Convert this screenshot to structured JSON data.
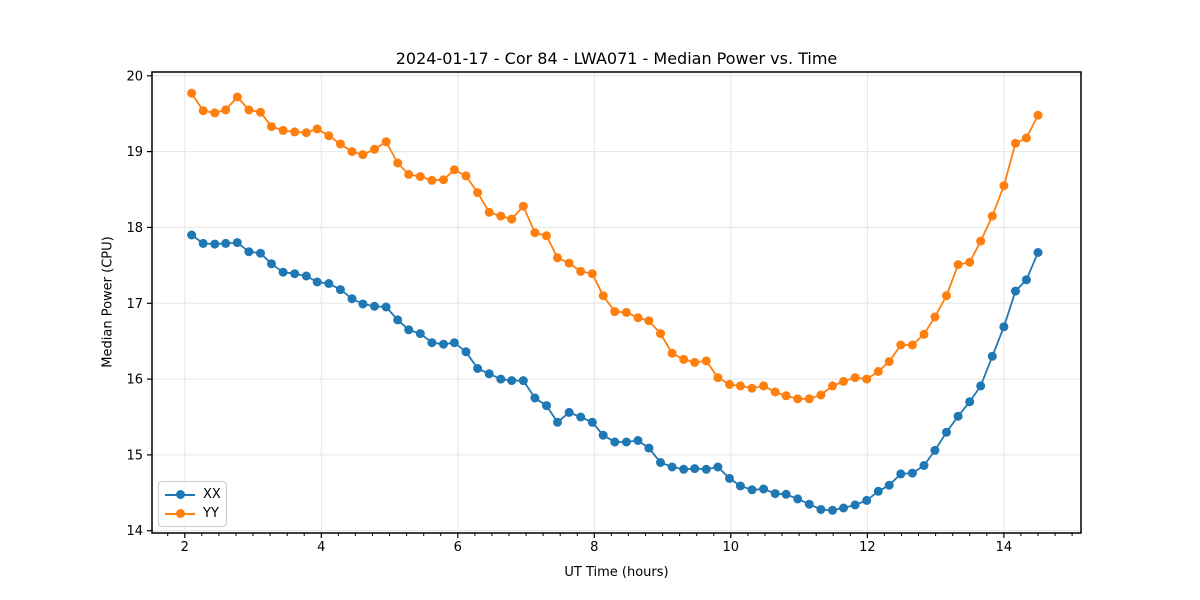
{
  "chart_data": {
    "type": "line",
    "title": "2024-01-17 - Cor 84 - LWA071 - Median Power vs. Time",
    "xlabel": "UT Time (hours)",
    "ylabel": "Median Power (CPU)",
    "xlim": [
      1.52,
      15.13
    ],
    "ylim": [
      13.97,
      20.05
    ],
    "xticks": [
      2,
      4,
      6,
      8,
      10,
      12,
      14
    ],
    "yticks": [
      14,
      15,
      16,
      17,
      18,
      19,
      20
    ],
    "minor_xtick_step": 0.25,
    "grid": true,
    "grid_color": "#e5e5e5",
    "legend_position": "lower left",
    "x": [
      2.1,
      2.27,
      2.44,
      2.6,
      2.77,
      2.94,
      3.11,
      3.27,
      3.44,
      3.61,
      3.78,
      3.94,
      4.11,
      4.28,
      4.45,
      4.61,
      4.78,
      4.95,
      5.12,
      5.28,
      5.45,
      5.62,
      5.79,
      5.95,
      6.12,
      6.29,
      6.46,
      6.63,
      6.79,
      6.96,
      7.13,
      7.3,
      7.46,
      7.63,
      7.8,
      7.97,
      8.13,
      8.3,
      8.47,
      8.64,
      8.8,
      8.97,
      9.14,
      9.31,
      9.47,
      9.64,
      9.81,
      9.98,
      10.14,
      10.31,
      10.48,
      10.65,
      10.81,
      10.98,
      11.15,
      11.32,
      11.49,
      11.65,
      11.82,
      11.99,
      12.16,
      12.32,
      12.49,
      12.66,
      12.83,
      12.99,
      13.16,
      13.33,
      13.5,
      13.66,
      13.83,
      14.0,
      14.17,
      14.33,
      14.5
    ],
    "series": [
      {
        "name": "XX",
        "color": "#1f77b4",
        "values": [
          17.9,
          17.79,
          17.78,
          17.79,
          17.8,
          17.68,
          17.66,
          17.52,
          17.41,
          17.39,
          17.36,
          17.28,
          17.26,
          17.18,
          17.06,
          16.99,
          16.96,
          16.95,
          16.78,
          16.65,
          16.6,
          16.48,
          16.46,
          16.48,
          16.36,
          16.14,
          16.07,
          16.0,
          15.98,
          15.98,
          15.75,
          15.65,
          15.43,
          15.56,
          15.5,
          15.43,
          15.26,
          15.17,
          15.17,
          15.19,
          15.09,
          14.9,
          14.84,
          14.81,
          14.82,
          14.81,
          14.84,
          14.69,
          14.59,
          14.54,
          14.55,
          14.49,
          14.48,
          14.42,
          14.35,
          14.28,
          14.27,
          14.3,
          14.34,
          14.4,
          14.52,
          14.6,
          14.75,
          14.76,
          14.86,
          15.06,
          15.3,
          15.51,
          15.7,
          15.91,
          16.3,
          16.69,
          17.16,
          17.31,
          17.67
        ]
      },
      {
        "name": "YY",
        "color": "#ff7f0e",
        "values": [
          19.77,
          19.54,
          19.51,
          19.55,
          19.72,
          19.55,
          19.52,
          19.33,
          19.28,
          19.26,
          19.25,
          19.3,
          19.21,
          19.1,
          19.0,
          18.96,
          19.03,
          19.13,
          18.85,
          18.7,
          18.67,
          18.62,
          18.63,
          18.76,
          18.68,
          18.46,
          18.2,
          18.15,
          18.11,
          18.28,
          17.93,
          17.89,
          17.6,
          17.53,
          17.42,
          17.39,
          17.1,
          16.89,
          16.88,
          16.81,
          16.77,
          16.6,
          16.34,
          16.26,
          16.22,
          16.24,
          16.02,
          15.93,
          15.91,
          15.88,
          15.91,
          15.83,
          15.78,
          15.74,
          15.74,
          15.79,
          15.91,
          15.97,
          16.02,
          16.0,
          16.1,
          16.23,
          16.45,
          16.45,
          16.59,
          16.82,
          17.1,
          17.51,
          17.54,
          17.82,
          18.15,
          18.55,
          19.11,
          19.18,
          19.48
        ]
      }
    ]
  }
}
